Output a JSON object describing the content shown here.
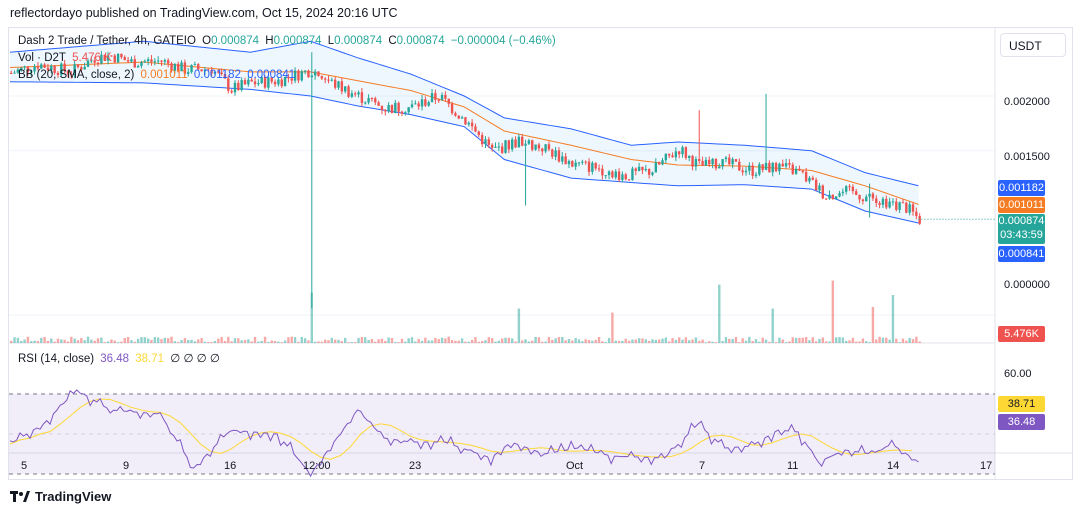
{
  "header": {
    "publish_text": "reflectordayo published on TradingView.com, Oct 15, 2024 20:16 UTC"
  },
  "legend": {
    "symbol": "Dash 2 Trade / Tether, 4h, GATEIO",
    "o_label": "O",
    "o_value": "0.000874",
    "h_label": "H",
    "h_value": "0.000874",
    "l_label": "L",
    "l_value": "0.000874",
    "c_label": "C",
    "c_value": "0.000874",
    "change": "−0.000004 (−0.46%)",
    "vol_label": "Vol · D2T",
    "vol_value": "5.476 K",
    "bb_label": "BB (20, SMA, close, 2)",
    "bb_basis": "0.001011",
    "bb_upper": "0.001182",
    "bb_lower": "0.000841",
    "rsi_label": "RSI (14, close)",
    "rsi_value": "36.48",
    "rsi_ma": "38.71",
    "rsi_zeros": "∅ ∅ ∅ ∅"
  },
  "currency": "USDT",
  "price_axis": {
    "ticks": [
      "0.002000",
      "0.001500",
      "0.000000"
    ]
  },
  "rsi_axis": {
    "ticks": [
      "60.00"
    ]
  },
  "tags": {
    "bb_upper": "0.001182",
    "bb_basis": "0.001011",
    "price": "0.000874",
    "countdown": "03:43:59",
    "bb_lower": "0.000841",
    "volume": "5.476K",
    "rsi_ma": "38.71",
    "rsi": "36.48"
  },
  "time_axis": {
    "labels": [
      "5",
      "9",
      "16",
      "12:00",
      "23",
      "Oct",
      "7",
      "11",
      "14",
      "17"
    ]
  },
  "footer": {
    "brand": "TradingView"
  },
  "colors": {
    "up": "#26a69a",
    "down": "#ef5350",
    "bb_basis": "#f57c23",
    "bb_band": "#2962ff",
    "rsi": "#7e57c2",
    "rsi_ma": "#fdd835"
  },
  "chart_data": {
    "type": "candlestick",
    "symbol": "Dash 2 Trade / Tether",
    "timeframe": "4h",
    "price_ticks": [
      0.0,
      0.0015,
      0.002
    ],
    "x_ticks": [
      "5",
      "9",
      "16",
      "12:00",
      "23",
      "Oct",
      "7",
      "11",
      "14",
      "17"
    ],
    "price_anchors": [
      [
        0,
        0.00221
      ],
      [
        8,
        0.00229
      ],
      [
        18,
        0.00222
      ],
      [
        25,
        0.00235
      ],
      [
        30,
        0.00237
      ],
      [
        36,
        0.00231
      ],
      [
        45,
        0.00232
      ],
      [
        52,
        0.00224
      ],
      [
        60,
        0.00225
      ],
      [
        66,
        0.00206
      ],
      [
        72,
        0.00212
      ],
      [
        80,
        0.00214
      ],
      [
        90,
        0.00224
      ],
      [
        96,
        0.00212
      ],
      [
        104,
        0.002
      ],
      [
        112,
        0.00189
      ],
      [
        120,
        0.0019
      ],
      [
        128,
        0.002
      ],
      [
        136,
        0.00178
      ],
      [
        144,
        0.0015
      ],
      [
        152,
        0.00159
      ],
      [
        160,
        0.00152
      ],
      [
        168,
        0.00138
      ],
      [
        176,
        0.00134
      ],
      [
        184,
        0.00127
      ],
      [
        192,
        0.00132
      ],
      [
        200,
        0.00152
      ],
      [
        206,
        0.00136
      ],
      [
        214,
        0.00138
      ],
      [
        222,
        0.00132
      ],
      [
        230,
        0.00136
      ],
      [
        236,
        0.0013
      ],
      [
        244,
        0.00109
      ],
      [
        250,
        0.00112
      ],
      [
        256,
        0.00108
      ],
      [
        262,
        0.00104
      ],
      [
        268,
        0.00098
      ],
      [
        272,
        0.00087
      ]
    ],
    "spike_highs": [
      [
        90,
        0.0024
      ],
      [
        206,
        0.00187
      ],
      [
        226,
        0.00202
      ],
      [
        257,
        0.0012
      ]
    ],
    "spike_lows": [
      [
        90,
        6e-05
      ],
      [
        154,
        0.001
      ],
      [
        257,
        0.00089
      ]
    ],
    "bollinger": {
      "period": 20,
      "stddev": 2,
      "upper": [
        [
          0,
          0.0024
        ],
        [
          40,
          0.0025
        ],
        [
          72,
          0.0024
        ],
        [
          90,
          0.0025
        ],
        [
          104,
          0.00235
        ],
        [
          120,
          0.0022
        ],
        [
          136,
          0.002
        ],
        [
          148,
          0.0018
        ],
        [
          168,
          0.0017
        ],
        [
          186,
          0.00155
        ],
        [
          200,
          0.00158
        ],
        [
          220,
          0.00155
        ],
        [
          240,
          0.0015
        ],
        [
          256,
          0.0013
        ],
        [
          272,
          0.00118
        ]
      ],
      "basis": [
        [
          0,
          0.00226
        ],
        [
          40,
          0.00231
        ],
        [
          72,
          0.00222
        ],
        [
          90,
          0.00222
        ],
        [
          104,
          0.00214
        ],
        [
          120,
          0.00205
        ],
        [
          136,
          0.0019
        ],
        [
          148,
          0.00168
        ],
        [
          168,
          0.00155
        ],
        [
          186,
          0.00142
        ],
        [
          200,
          0.00137
        ],
        [
          220,
          0.00136
        ],
        [
          240,
          0.00132
        ],
        [
          256,
          0.00118
        ],
        [
          272,
          0.00101
        ]
      ],
      "lower": [
        [
          0,
          0.00213
        ],
        [
          40,
          0.00212
        ],
        [
          72,
          0.00206
        ],
        [
          90,
          0.002
        ],
        [
          104,
          0.00191
        ],
        [
          120,
          0.00183
        ],
        [
          136,
          0.00172
        ],
        [
          148,
          0.00142
        ],
        [
          168,
          0.00125
        ],
        [
          186,
          0.00121
        ],
        [
          200,
          0.00118
        ],
        [
          220,
          0.00119
        ],
        [
          240,
          0.00115
        ],
        [
          256,
          0.00095
        ],
        [
          272,
          0.00084
        ]
      ]
    },
    "last": {
      "open": 0.000874,
      "high": 0.000874,
      "low": 0.000874,
      "close": 0.000874,
      "change": -4e-06,
      "change_pct": -0.46
    },
    "volume": {
      "last": 5476,
      "spikes": [
        [
          90,
          0.63
        ],
        [
          152,
          0.43
        ],
        [
          180,
          0.38
        ],
        [
          212,
          0.73
        ],
        [
          228,
          0.43
        ],
        [
          246,
          0.78
        ],
        [
          258,
          0.45
        ],
        [
          264,
          0.6
        ],
        [
          278,
          0.2
        ],
        [
          286,
          0.25
        ]
      ]
    },
    "rsi": {
      "period": 14,
      "last": 36.48,
      "ma_last": 38.71,
      "bands": [
        30,
        70
      ],
      "ticks": [
        60
      ],
      "anchors": [
        [
          0,
          45
        ],
        [
          10,
          55
        ],
        [
          20,
          72
        ],
        [
          30,
          62
        ],
        [
          45,
          60
        ],
        [
          55,
          33
        ],
        [
          66,
          52
        ],
        [
          80,
          50
        ],
        [
          90,
          30
        ],
        [
          104,
          62
        ],
        [
          112,
          48
        ],
        [
          120,
          46
        ],
        [
          130,
          46
        ],
        [
          144,
          38
        ],
        [
          150,
          46
        ],
        [
          160,
          40
        ],
        [
          170,
          43
        ],
        [
          180,
          39
        ],
        [
          196,
          38
        ],
        [
          206,
          55
        ],
        [
          214,
          43
        ],
        [
          222,
          44
        ],
        [
          230,
          52
        ],
        [
          236,
          51
        ],
        [
          242,
          36
        ],
        [
          250,
          42
        ],
        [
          258,
          40
        ],
        [
          264,
          45
        ],
        [
          272,
          36
        ]
      ]
    }
  }
}
